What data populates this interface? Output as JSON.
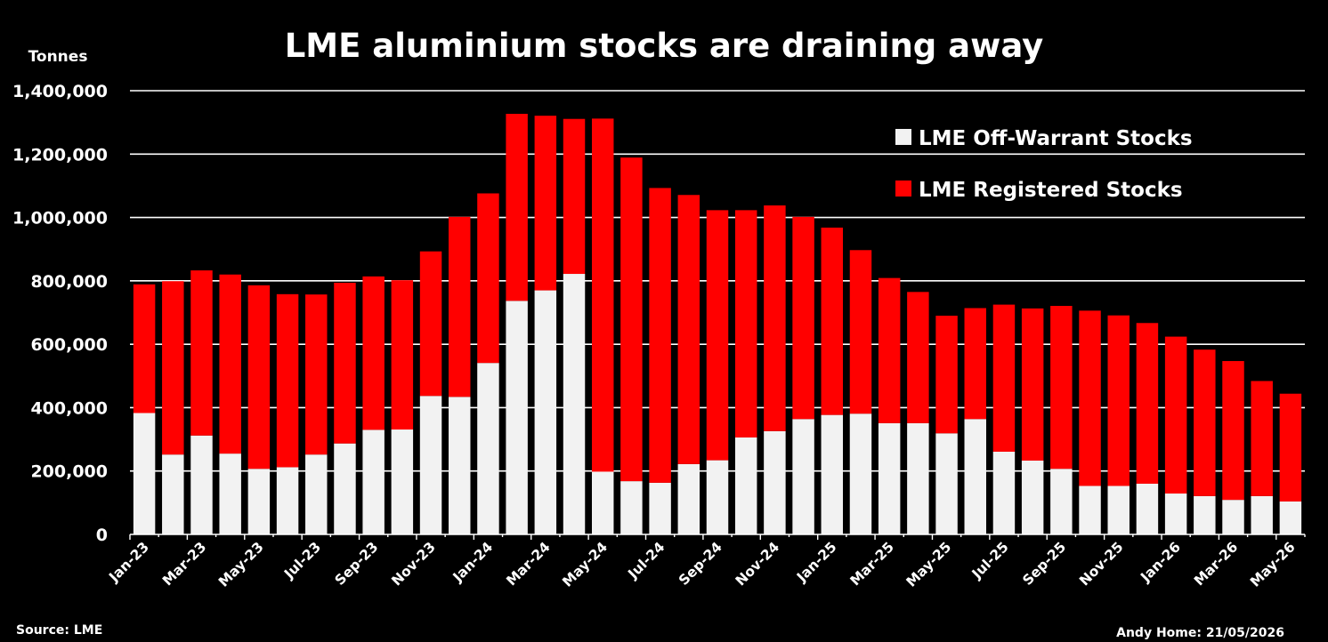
{
  "chart_data": {
    "type": "bar",
    "stacked": true,
    "title": "LME aluminium stocks are draining away",
    "ylabel": "Tonnes",
    "ylim": [
      0,
      1400000
    ],
    "yticks": [
      0,
      200000,
      400000,
      600000,
      800000,
      1000000,
      1200000,
      1400000
    ],
    "ytick_labels": [
      "0",
      "200,000",
      "400,000",
      "600,000",
      "800,000",
      "1,000,000",
      "1,200,000",
      "1,400,000"
    ],
    "grid": true,
    "legend_position": "top-right",
    "categories": [
      "Jan-23",
      "Feb-23",
      "Mar-23",
      "Apr-23",
      "May-23",
      "Jun-23",
      "Jul-23",
      "Aug-23",
      "Sep-23",
      "Oct-23",
      "Nov-23",
      "Dec-23",
      "Jan-24",
      "Feb-24",
      "Mar-24",
      "Apr-24",
      "May-24",
      "Jun-24",
      "Jul-24",
      "Aug-24",
      "Sep-24",
      "Oct-24",
      "Nov-24",
      "Dec-24",
      "Jan-25",
      "Feb-25",
      "Mar-25",
      "Apr-25",
      "May-25",
      "Jun-25",
      "Jul-25",
      "Aug-25",
      "Sep-25",
      "Oct-25",
      "Nov-25",
      "Dec-25",
      "Jan-26",
      "Feb-26",
      "Mar-26",
      "Apr-26",
      "May-26"
    ],
    "xtick_labels": [
      "Jan-23",
      "Mar-23",
      "May-23",
      "Jul-23",
      "Sep-23",
      "Nov-23",
      "Jan-24",
      "Mar-24",
      "May-24",
      "Jul-24",
      "Sep-24",
      "Nov-24",
      "Jan-25",
      "Mar-25",
      "May-25",
      "Jul-25",
      "Sep-25",
      "Nov-25",
      "Jan-26",
      "Mar-26",
      "May-26"
    ],
    "series": [
      {
        "name": "LME Off-Warrant Stocks",
        "color": "#f2f2f2",
        "values": [
          383000,
          252000,
          312000,
          255000,
          207000,
          212000,
          252000,
          287000,
          330000,
          331000,
          437000,
          434000,
          541000,
          737000,
          770000,
          822000,
          198000,
          168000,
          163000,
          222000,
          234000,
          306000,
          326000,
          364000,
          377000,
          381000,
          351000,
          351000,
          319000,
          364000,
          261000,
          233000,
          207000,
          153000,
          153000,
          160000,
          129000,
          121000,
          109000,
          121000,
          104000
        ]
      },
      {
        "name": "LME Registered Stocks",
        "color": "#ff0000",
        "values": [
          406000,
          547000,
          521000,
          565000,
          579000,
          546000,
          505000,
          507000,
          484000,
          471000,
          456000,
          568000,
          535000,
          590000,
          551000,
          489000,
          1114000,
          1021000,
          930000,
          849000,
          789000,
          717000,
          712000,
          638000,
          591000,
          516000,
          458000,
          414000,
          371000,
          350000,
          464000,
          480000,
          514000,
          553000,
          538000,
          507000,
          495000,
          462000,
          438000,
          363000,
          340000
        ]
      }
    ]
  },
  "footer": {
    "source": "Source: LME",
    "credit": "Andy Home: 21/05/2026"
  }
}
